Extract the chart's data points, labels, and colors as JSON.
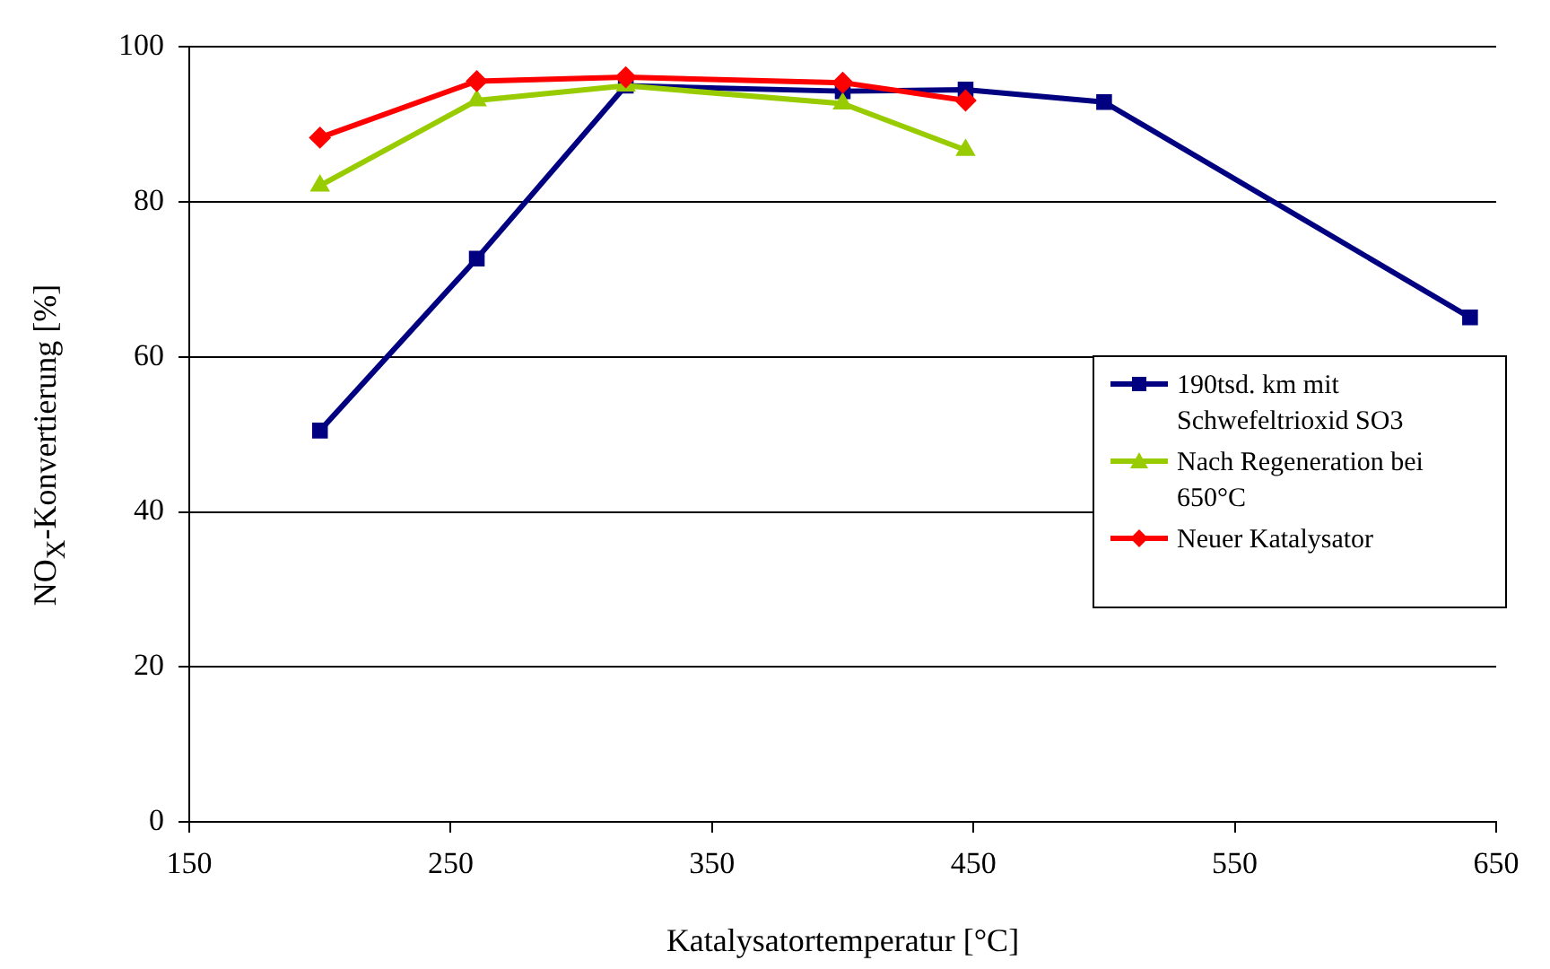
{
  "chart_data": {
    "type": "line",
    "xlabel": "Katalysatortemperatur [°C]",
    "ylabel": "NO$_{X}$-Konvertierung [%]",
    "xlim": [
      150,
      650
    ],
    "xticks": [
      150,
      250,
      350,
      450,
      550,
      650
    ],
    "ylim": [
      0,
      100
    ],
    "yticks": [
      0,
      20,
      40,
      60,
      80,
      100
    ],
    "grid": "y",
    "legend": "right",
    "series": [
      {
        "name": "190tsd. km mit Schwefeltrioxid SO3",
        "color": "#000080",
        "marker": "square",
        "x": [
          200,
          260,
          317,
          400,
          447,
          500,
          640
        ],
        "values": [
          50.5,
          72.7,
          95,
          94.3,
          94.5,
          92.9,
          65.1
        ]
      },
      {
        "name": "Nach Regeneration bei 650°C",
        "color": "#99cc00",
        "marker": "triangle",
        "x": [
          200,
          260,
          317,
          400,
          447
        ],
        "values": [
          82.1,
          93.1,
          95,
          92.7,
          86.7
        ]
      },
      {
        "name": "Neuer Katalysator",
        "color": "#ff0000",
        "marker": "diamond",
        "x": [
          200,
          260,
          317,
          400,
          447
        ],
        "values": [
          88.3,
          95.6,
          96.1,
          95.4,
          93.1
        ]
      }
    ]
  }
}
